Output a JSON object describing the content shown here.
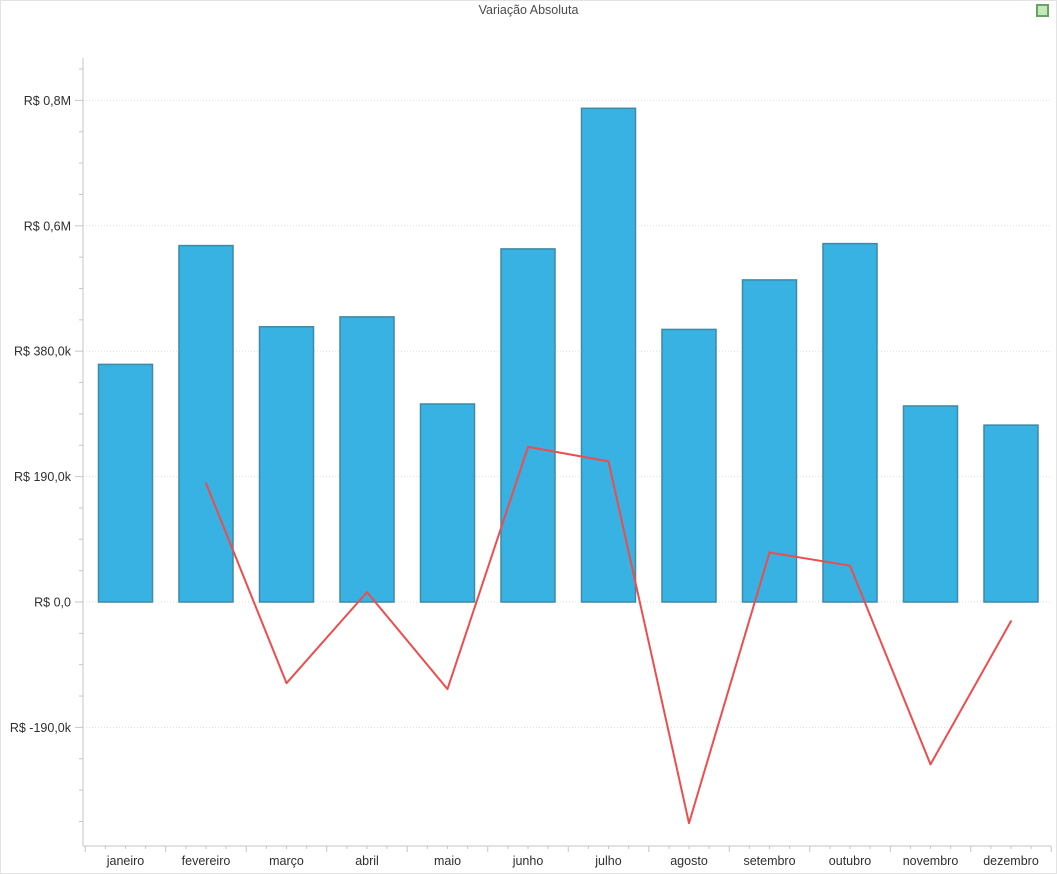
{
  "chart": {
    "title": "Variação Absoluta"
  },
  "icons": {
    "corner_marker": {
      "name": "green-square-icon",
      "fill": "#c2e8bb",
      "border": "#6aa266"
    }
  },
  "colors": {
    "background": "#ffffff",
    "axis": "#c6c6c6",
    "grid": "#dedede",
    "tick_label": "#2f2f2f",
    "title": "#4b4b4b",
    "bar_fill": "#38b2e2",
    "bar_border": "#3d89a6",
    "line": "#ed4d4d"
  },
  "chart_data": {
    "type": "bar",
    "title": "Variação Absoluta",
    "categories": [
      "janeiro",
      "fevereiro",
      "março",
      "abril",
      "maio",
      "junho",
      "julho",
      "agosto",
      "setembro",
      "outubro",
      "novembro",
      "dezembro"
    ],
    "series": [
      {
        "name": "bars",
        "type": "bar",
        "color": "#38b2e2",
        "border_color": "#3d89a6",
        "values": [
          360,
          540,
          417,
          432,
          300,
          535,
          748,
          413,
          488,
          543,
          297,
          268
        ]
      },
      {
        "name": "line",
        "type": "line",
        "color": "#ed4d4d",
        "values": [
          null,
          180,
          -123,
          15,
          -132,
          235,
          213,
          -335,
          75,
          55,
          -246,
          -29
        ]
      }
    ],
    "unit": "R$ thousands",
    "xlabel": "",
    "ylabel": "",
    "ylim": [
      -370,
      824
    ],
    "y_ticks": [
      {
        "value": 760,
        "label": "R$ 0,8M"
      },
      {
        "value": 570,
        "label": "R$ 0,6M"
      },
      {
        "value": 380,
        "label": "R$ 380,0k"
      },
      {
        "value": 190,
        "label": "R$ 190,0k"
      },
      {
        "value": 0,
        "label": "R$ 0,0"
      },
      {
        "value": -190,
        "label": "R$ -190,0k"
      }
    ],
    "y_minor_step": 47.5,
    "grid": "horizontal-dotted",
    "legend": "none"
  }
}
